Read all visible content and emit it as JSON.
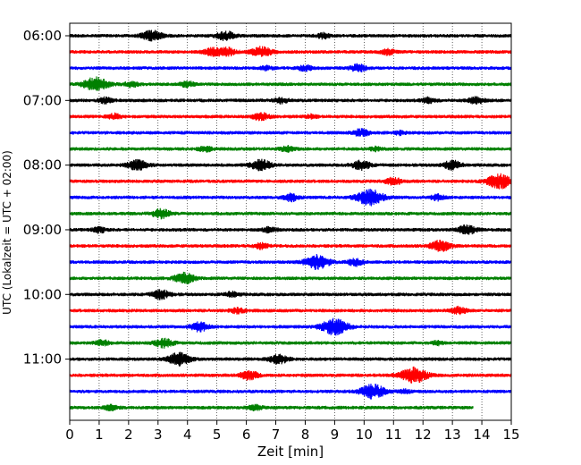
{
  "chart_data": {
    "type": "line",
    "title": "",
    "xlabel": "Zeit  [min]",
    "ylabel": "UTC (Lokalzeit = UTC + 02:00)",
    "xlim": [
      0,
      15
    ],
    "x_ticks": [
      "0",
      "1",
      "2",
      "3",
      "4",
      "5",
      "6",
      "7",
      "8",
      "9",
      "10",
      "11",
      "12",
      "13",
      "14",
      "15"
    ],
    "y_ticks": [
      "06:00",
      "07:00",
      "08:00",
      "09:00",
      "10:00",
      "11:00"
    ],
    "grid": "vertical dotted at each minute",
    "row_interval_minutes": 15,
    "row_colors": [
      "#000000",
      "#ff0000",
      "#0000ff",
      "#008000"
    ],
    "rows": [
      {
        "time": "06:00",
        "color": "#000000",
        "bursts": [
          [
            2.8,
            0.6
          ],
          [
            5.3,
            0.5
          ],
          [
            8.6,
            0.3
          ]
        ]
      },
      {
        "time": "06:15",
        "color": "#ff0000",
        "bursts": [
          [
            4.8,
            0.4
          ],
          [
            5.3,
            0.5
          ],
          [
            6.5,
            0.6
          ],
          [
            10.8,
            0.3
          ]
        ]
      },
      {
        "time": "06:30",
        "color": "#0000ff",
        "bursts": [
          [
            6.7,
            0.2
          ],
          [
            8.0,
            0.3
          ],
          [
            9.8,
            0.4
          ]
        ]
      },
      {
        "time": "06:45",
        "color": "#008000",
        "bursts": [
          [
            0.9,
            0.8
          ],
          [
            2.1,
            0.3
          ],
          [
            4.0,
            0.3
          ]
        ]
      },
      {
        "time": "07:00",
        "color": "#000000",
        "bursts": [
          [
            1.2,
            0.3
          ],
          [
            7.2,
            0.3
          ],
          [
            12.2,
            0.3
          ],
          [
            13.8,
            0.4
          ]
        ]
      },
      {
        "time": "07:15",
        "color": "#ff0000",
        "bursts": [
          [
            1.5,
            0.3
          ],
          [
            6.5,
            0.4
          ],
          [
            8.2,
            0.2
          ]
        ]
      },
      {
        "time": "07:30",
        "color": "#0000ff",
        "bursts": [
          [
            9.9,
            0.4
          ],
          [
            11.2,
            0.2
          ]
        ]
      },
      {
        "time": "07:45",
        "color": "#008000",
        "bursts": [
          [
            4.6,
            0.3
          ],
          [
            7.4,
            0.3
          ],
          [
            10.4,
            0.2
          ]
        ]
      },
      {
        "time": "08:00",
        "color": "#000000",
        "bursts": [
          [
            2.3,
            0.6
          ],
          [
            6.5,
            0.6
          ],
          [
            9.9,
            0.5
          ],
          [
            13.0,
            0.5
          ]
        ]
      },
      {
        "time": "08:15",
        "color": "#ff0000",
        "bursts": [
          [
            11.0,
            0.4
          ],
          [
            14.6,
            0.8
          ]
        ]
      },
      {
        "time": "08:30",
        "color": "#0000ff",
        "bursts": [
          [
            7.5,
            0.4
          ],
          [
            10.2,
            0.9
          ],
          [
            12.5,
            0.3
          ]
        ]
      },
      {
        "time": "08:45",
        "color": "#008000",
        "bursts": [
          [
            3.1,
            0.5
          ]
        ]
      },
      {
        "time": "09:00",
        "color": "#000000",
        "bursts": [
          [
            1.0,
            0.3
          ],
          [
            6.8,
            0.3
          ],
          [
            13.5,
            0.5
          ]
        ]
      },
      {
        "time": "09:15",
        "color": "#ff0000",
        "bursts": [
          [
            6.5,
            0.3
          ],
          [
            12.6,
            0.6
          ]
        ]
      },
      {
        "time": "09:30",
        "color": "#0000ff",
        "bursts": [
          [
            8.4,
            0.8
          ],
          [
            9.7,
            0.4
          ]
        ]
      },
      {
        "time": "09:45",
        "color": "#008000",
        "bursts": [
          [
            3.9,
            0.6
          ]
        ]
      },
      {
        "time": "10:00",
        "color": "#000000",
        "bursts": [
          [
            3.1,
            0.5
          ],
          [
            5.5,
            0.3
          ]
        ]
      },
      {
        "time": "10:15",
        "color": "#ff0000",
        "bursts": [
          [
            5.7,
            0.3
          ],
          [
            13.2,
            0.4
          ]
        ]
      },
      {
        "time": "10:30",
        "color": "#0000ff",
        "bursts": [
          [
            4.4,
            0.5
          ],
          [
            9.0,
            0.9
          ]
        ]
      },
      {
        "time": "10:45",
        "color": "#008000",
        "bursts": [
          [
            1.1,
            0.3
          ],
          [
            3.2,
            0.5
          ],
          [
            12.5,
            0.2
          ]
        ]
      },
      {
        "time": "11:00",
        "color": "#000000",
        "bursts": [
          [
            3.7,
            0.7
          ],
          [
            7.1,
            0.5
          ]
        ]
      },
      {
        "time": "11:15",
        "color": "#ff0000",
        "bursts": [
          [
            6.1,
            0.5
          ],
          [
            11.7,
            0.9
          ]
        ]
      },
      {
        "time": "11:30",
        "color": "#0000ff",
        "bursts": [
          [
            10.3,
            0.8
          ],
          [
            11.4,
            0.2
          ]
        ]
      },
      {
        "time": "11:45",
        "color": "#008000",
        "bursts": [
          [
            1.4,
            0.3
          ],
          [
            6.3,
            0.3
          ]
        ],
        "end": 13.7
      }
    ]
  }
}
